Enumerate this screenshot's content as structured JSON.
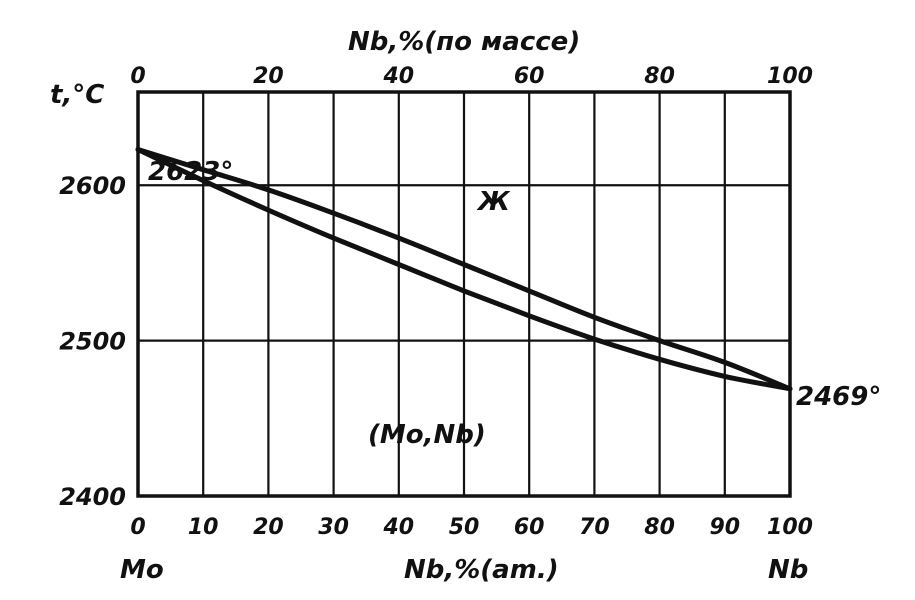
{
  "chart_data": {
    "type": "line",
    "ylabel": "t,°C",
    "xlabel_bottom": "Nb,%(am.)",
    "xlabel_top": "Nb,%(по массе)",
    "x_end_left": "Mo",
    "x_end_right": "Nb",
    "xlim": [
      0,
      100
    ],
    "ylim": [
      2400,
      2660
    ],
    "x_ticks_bottom": [
      "0",
      "10",
      "20",
      "30",
      "40",
      "50",
      "60",
      "70",
      "80",
      "90",
      "100"
    ],
    "x_ticks_top": [
      "0",
      "20",
      "40",
      "60",
      "80",
      "100"
    ],
    "y_ticks": [
      "2600",
      "2500",
      "2400"
    ],
    "grid": true,
    "series": [
      {
        "x": [
          0,
          10,
          20,
          30,
          40,
          50,
          60,
          70,
          80,
          90,
          100
        ],
        "y": [
          2623,
          2610,
          2597,
          2582,
          2566,
          2549,
          2532,
          2515,
          2500,
          2486,
          2469
        ]
      },
      {
        "x": [
          0,
          10,
          20,
          30,
          40,
          50,
          60,
          70,
          80,
          90,
          100
        ],
        "y": [
          2623,
          2603,
          2584,
          2566,
          2549,
          2532,
          2516,
          2501,
          2488,
          2477,
          2469
        ]
      }
    ],
    "annotations": {
      "left_temp": "2623°",
      "right_temp": "2469°",
      "liquid_label": "Ж",
      "solid_label": "(Mo,Nb)"
    }
  }
}
